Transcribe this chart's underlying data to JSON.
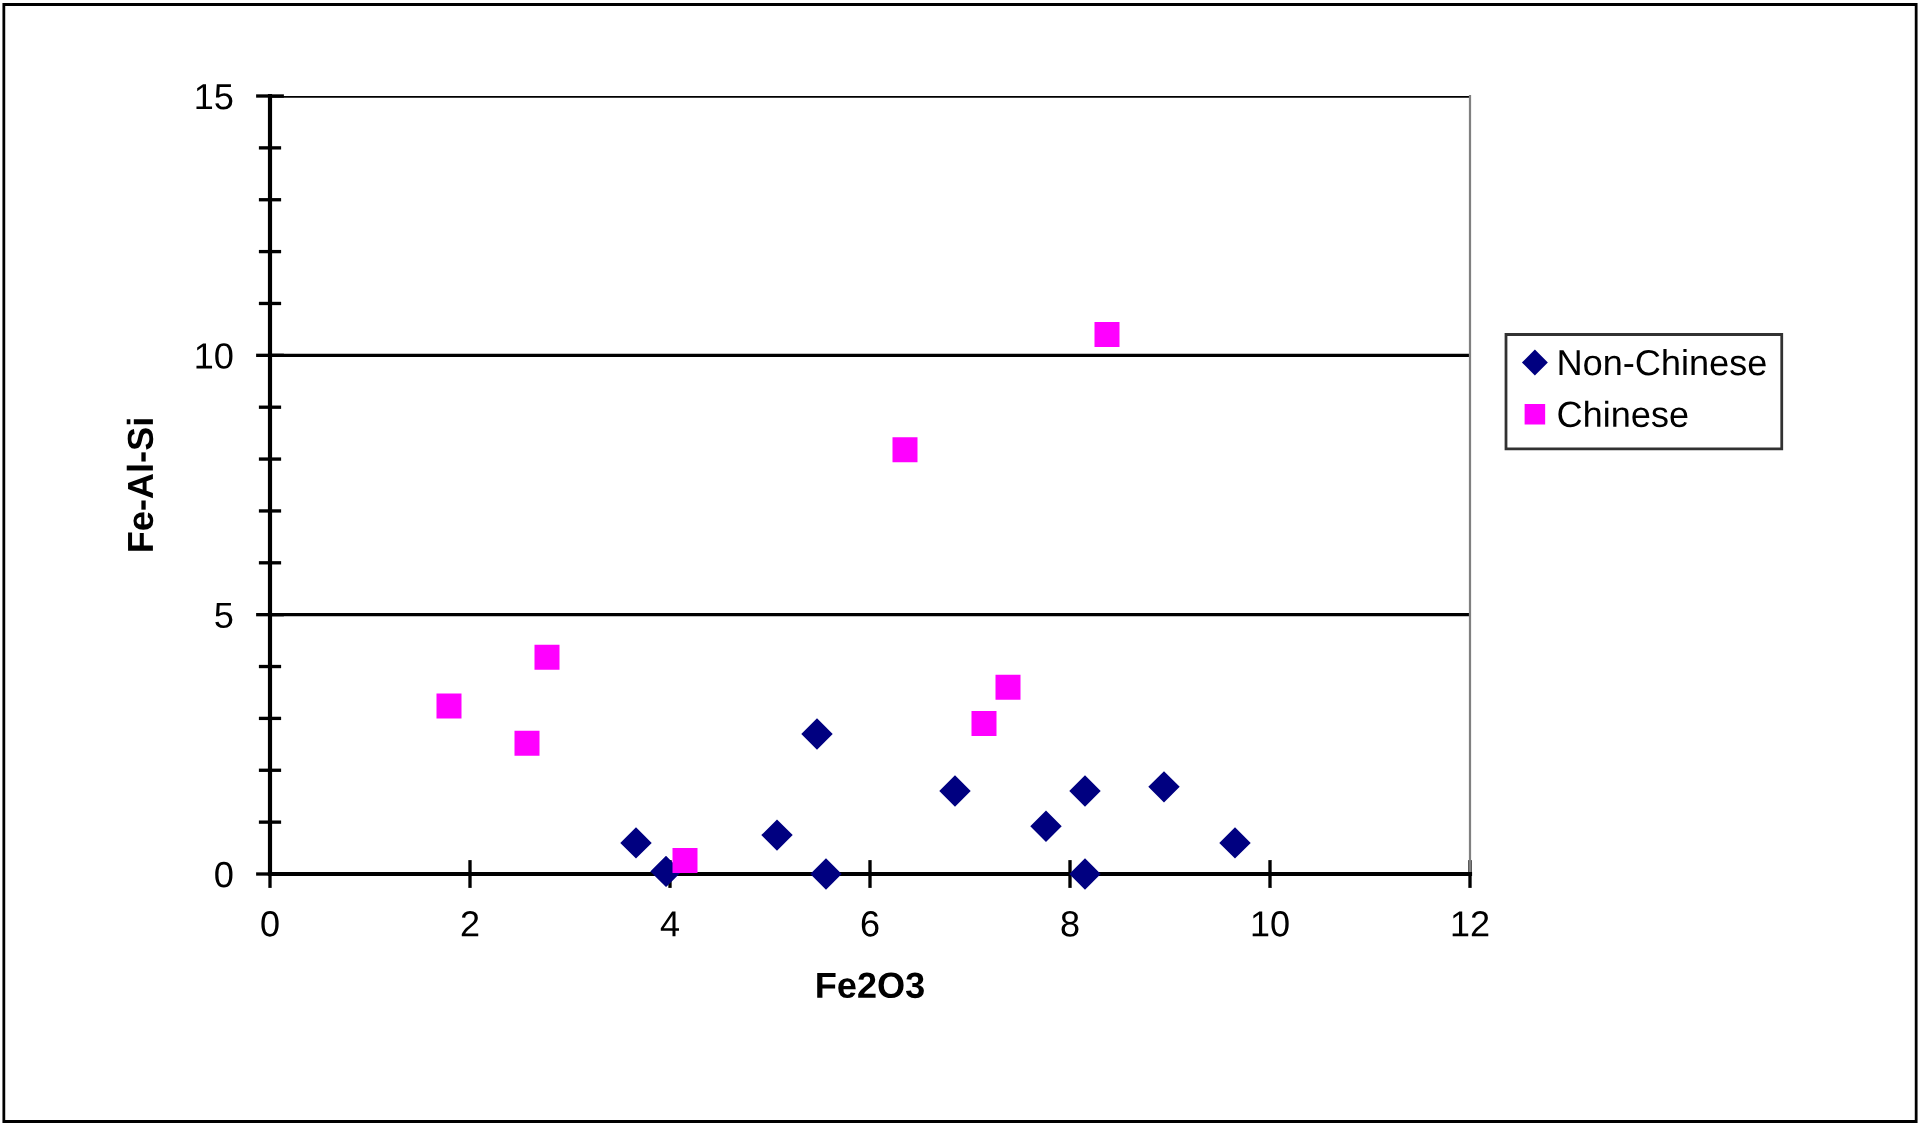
{
  "chart_data": {
    "type": "scatter",
    "xlabel": "Fe2O3",
    "ylabel": "Fe-Al-Si",
    "xlim": [
      0,
      12
    ],
    "xticks": [
      0,
      2,
      4,
      6,
      8,
      10,
      12
    ],
    "ylim": [
      0,
      15
    ],
    "yticks": [
      0,
      5,
      10,
      15
    ],
    "grid": "y",
    "legend": "right",
    "series": [
      {
        "name": "Non-Chinese",
        "color": "#000080",
        "marker": "diamond",
        "x": [
          3.66,
          3.96,
          5.07,
          5.47,
          5.56,
          6.85,
          7.76,
          8.15,
          8.15,
          8.94,
          9.65
        ],
        "values": [
          0.6,
          0.05,
          0.75,
          2.7,
          0,
          1.6,
          0.92,
          1.6,
          0,
          1.68,
          0.6
        ]
      },
      {
        "name": "Chinese",
        "color": "#ff00ff",
        "marker": "square",
        "x": [
          1.79,
          2.57,
          2.77,
          4.15,
          6.35,
          7.14,
          7.38,
          8.37
        ],
        "values": [
          3.24,
          2.52,
          4.18,
          0.26,
          8.18,
          2.9,
          3.6,
          10.4
        ]
      }
    ]
  }
}
